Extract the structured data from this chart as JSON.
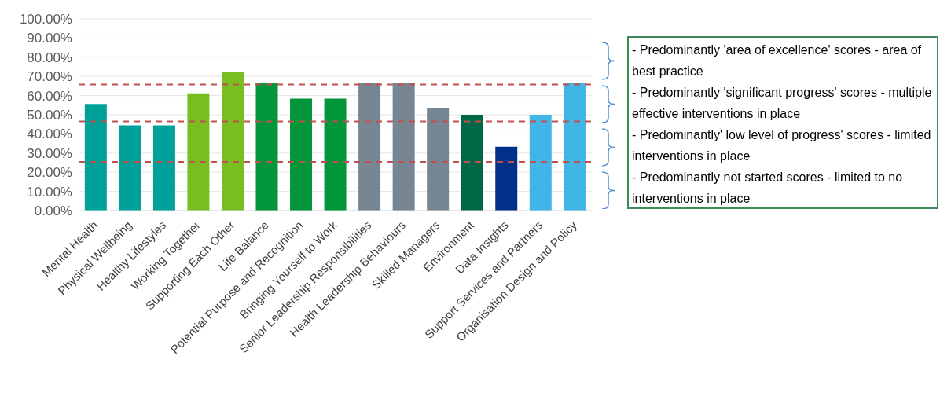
{
  "chart_data": {
    "type": "bar",
    "categories": [
      "Mental Health",
      "Physical Wellbeing",
      "Healthy Lifestyles",
      "Working Together",
      "Supporting Each Other",
      "Life Balance",
      "Potential Purpose and Recognition",
      "Bringing Yourself to Work",
      "Senior Leadership Responsibilities",
      "Health Leadership Behaviours",
      "Skilled Managers",
      "Environment",
      "Data Insights",
      "Support Services and Partners",
      "Organisation Design and Policy"
    ],
    "values": [
      55.6,
      44.5,
      44.5,
      61.2,
      72.2,
      66.7,
      58.4,
      58.4,
      66.7,
      66.7,
      53.4,
      50,
      33.3,
      50,
      66.7
    ],
    "colors": [
      "#00a19a",
      "#00a19a",
      "#00a19a",
      "#78be20",
      "#78be20",
      "#009639",
      "#009639",
      "#009639",
      "#768692",
      "#768692",
      "#768692",
      "#006747",
      "#003087",
      "#41b6e6",
      "#41b6e6"
    ],
    "ylim": [
      0,
      100
    ],
    "yticks": [
      {
        "value": 0,
        "label": "0.00%"
      },
      {
        "value": 10,
        "label": "10.00%"
      },
      {
        "value": 20,
        "label": "20.00%"
      },
      {
        "value": 30,
        "label": "30.00%"
      },
      {
        "value": 40,
        "label": "40.00%"
      },
      {
        "value": 50,
        "label": "50.00%"
      },
      {
        "value": 60,
        "label": "60.00%"
      },
      {
        "value": 70,
        "label": "70.00%"
      },
      {
        "value": 80,
        "label": "80.00%"
      },
      {
        "value": 90,
        "label": "90.00%"
      },
      {
        "value": 100,
        "label": "100.00%"
      }
    ],
    "grid": "y",
    "ref_lines": [
      {
        "axis": "y",
        "value": 65.8,
        "color": "#c0504d",
        "line_style": "dashed"
      },
      {
        "axis": "y",
        "value": 46.5,
        "color": "#c0504d",
        "line_style": "dashed"
      },
      {
        "axis": "y",
        "value": 25.4,
        "color": "#c0504d",
        "line_style": "dashed"
      }
    ],
    "annotations": [
      "- Predominantly 'area of excellence' scores - area of best practice",
      "- Predominantly 'significant progress' scores - multiple effective interventions in place",
      "- Predominantly' low level of progress' scores - limited interventions in place",
      "- Predominantly not started scores - limited to no interventions in place"
    ]
  }
}
